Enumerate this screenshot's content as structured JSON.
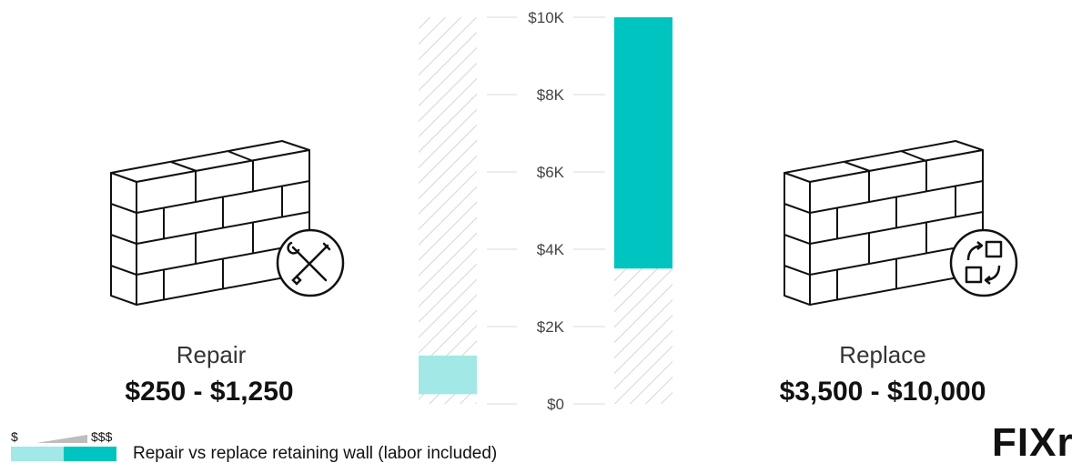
{
  "chart_data": {
    "type": "bar",
    "subtype": "floating-range",
    "categories": [
      "Repair",
      "Replace"
    ],
    "series": [
      {
        "category": "Repair",
        "low": 250,
        "high": 1250,
        "range_label": "$250 - $1,250",
        "color": "#a1e8e6"
      },
      {
        "category": "Replace",
        "low": 3500,
        "high": 10000,
        "range_label": "$3,500 - $10,000",
        "color": "#00c4bf"
      }
    ],
    "ylim": [
      0,
      10000
    ],
    "y_ticks": [
      {
        "value": 0,
        "label": "$0"
      },
      {
        "value": 2000,
        "label": "$2K"
      },
      {
        "value": 4000,
        "label": "$4K"
      },
      {
        "value": 6000,
        "label": "$6K"
      },
      {
        "value": 8000,
        "label": "$8K"
      },
      {
        "value": 10000,
        "label": "$10K"
      }
    ],
    "grid": true,
    "hatched_background": true
  },
  "legend": {
    "low_symbol": "$",
    "high_symbol": "$$$",
    "caption": "Repair vs replace retaining wall (labor included)",
    "colors": {
      "low": "#a1e8e6",
      "high": "#00c4bf"
    }
  },
  "icons": {
    "repair": "wrench-screwdriver-icon",
    "replace": "swap-arrows-icon",
    "wall": "brick-wall-icon"
  },
  "logo": {
    "text": "FIXr"
  },
  "colors": {
    "grid": "#e5e5e5",
    "hatch": "#d6d6d6",
    "outline": "#111111"
  }
}
